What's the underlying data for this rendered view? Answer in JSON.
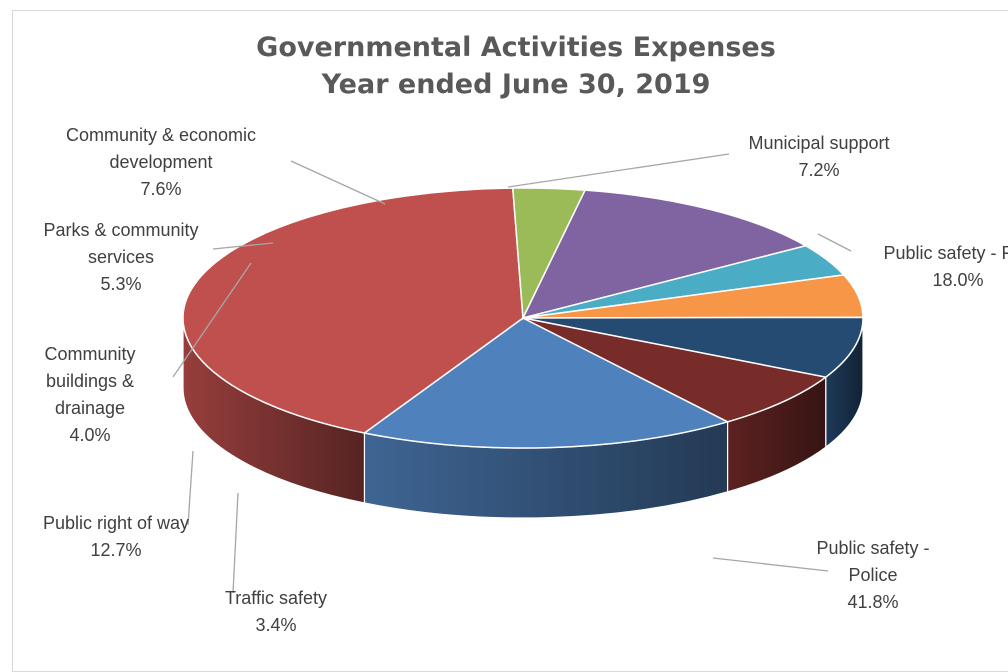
{
  "chart_data": {
    "type": "pie",
    "style": "3d-pie",
    "title": [
      "Governmental Activities Expenses",
      "Year ended June 30, 2019"
    ],
    "slices": [
      {
        "key": "fire",
        "label": [
          "Public safety - Fire"
        ],
        "pct": "18.0%",
        "value": 18.0,
        "color": "#4f81bd"
      },
      {
        "key": "police",
        "label": [
          "Public safety -",
          "Police"
        ],
        "pct": "41.8%",
        "value": 41.8,
        "color": "#c0504d"
      },
      {
        "key": "traffic",
        "label": [
          "Traffic safety"
        ],
        "pct": "3.4%",
        "value": 3.4,
        "color": "#9bbb59"
      },
      {
        "key": "row",
        "label": [
          "Public right of way"
        ],
        "pct": "12.7%",
        "value": 12.7,
        "color": "#8064a2"
      },
      {
        "key": "buildings",
        "label": [
          "Community",
          "buildings &",
          "drainage"
        ],
        "pct": "4.0%",
        "value": 4.0,
        "color": "#4bacc6"
      },
      {
        "key": "parks",
        "label": [
          "Parks & community",
          "services"
        ],
        "pct": "5.3%",
        "value": 5.3,
        "color": "#f79646"
      },
      {
        "key": "ced",
        "label": [
          "Community & economic",
          "development"
        ],
        "pct": "7.6%",
        "value": 7.6,
        "color": "#264b73"
      },
      {
        "key": "municipal",
        "label": [
          "Municipal support"
        ],
        "pct": "7.2%",
        "value": 7.2,
        "color": "#772c2a"
      }
    ],
    "legend": "none"
  }
}
